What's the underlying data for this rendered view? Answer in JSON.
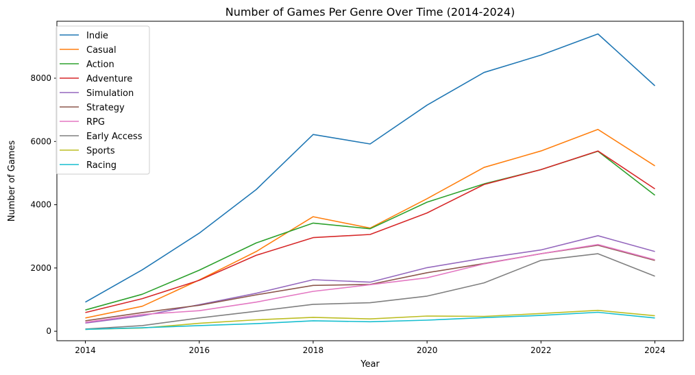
{
  "chart_data": {
    "type": "line",
    "title": "Number of Games Per Genre Over Time (2014-2024)",
    "xlabel": "Year",
    "ylabel": "Number of Games",
    "xlim": [
      2013.5,
      2024.5
    ],
    "ylim": [
      -300,
      9800
    ],
    "x": [
      2014,
      2015,
      2016,
      2017,
      2018,
      2019,
      2020,
      2021,
      2022,
      2023,
      2024
    ],
    "xticks": [
      2014,
      2016,
      2018,
      2020,
      2022,
      2024
    ],
    "yticks": [
      0,
      2000,
      4000,
      6000,
      8000
    ],
    "grid": false,
    "legend_position": "top-left",
    "series": [
      {
        "name": "Indie",
        "color": "#1f77b4",
        "values": [
          920,
          1940,
          3100,
          4480,
          6220,
          5920,
          7150,
          8180,
          8730,
          9400,
          7760
        ]
      },
      {
        "name": "Casual",
        "color": "#ff7f0e",
        "values": [
          420,
          790,
          1620,
          2520,
          3620,
          3260,
          4190,
          5180,
          5700,
          6380,
          5230
        ]
      },
      {
        "name": "Action",
        "color": "#2ca02c",
        "values": [
          670,
          1170,
          1930,
          2790,
          3420,
          3240,
          4080,
          4660,
          5110,
          5690,
          4300
        ]
      },
      {
        "name": "Adventure",
        "color": "#d62728",
        "values": [
          590,
          1030,
          1610,
          2400,
          2960,
          3060,
          3740,
          4640,
          5110,
          5700,
          4500
        ]
      },
      {
        "name": "Simulation",
        "color": "#9467bd",
        "values": [
          260,
          490,
          840,
          1200,
          1630,
          1550,
          2010,
          2310,
          2570,
          3020,
          2520
        ]
      },
      {
        "name": "Strategy",
        "color": "#8c564b",
        "values": [
          330,
          590,
          820,
          1150,
          1450,
          1480,
          1850,
          2140,
          2450,
          2720,
          2240
        ]
      },
      {
        "name": "RPG",
        "color": "#e377c2",
        "values": [
          280,
          530,
          650,
          920,
          1260,
          1470,
          1690,
          2130,
          2450,
          2740,
          2260
        ]
      },
      {
        "name": "Early Access",
        "color": "#7f7f7f",
        "values": [
          70,
          180,
          420,
          630,
          850,
          900,
          1110,
          1530,
          2240,
          2450,
          1740
        ]
      },
      {
        "name": "Sports",
        "color": "#bcbd22",
        "values": [
          60,
          100,
          250,
          360,
          440,
          390,
          480,
          470,
          560,
          660,
          490
        ]
      },
      {
        "name": "Racing",
        "color": "#17becf",
        "values": [
          60,
          110,
          180,
          240,
          330,
          300,
          350,
          430,
          500,
          600,
          420
        ]
      }
    ]
  }
}
